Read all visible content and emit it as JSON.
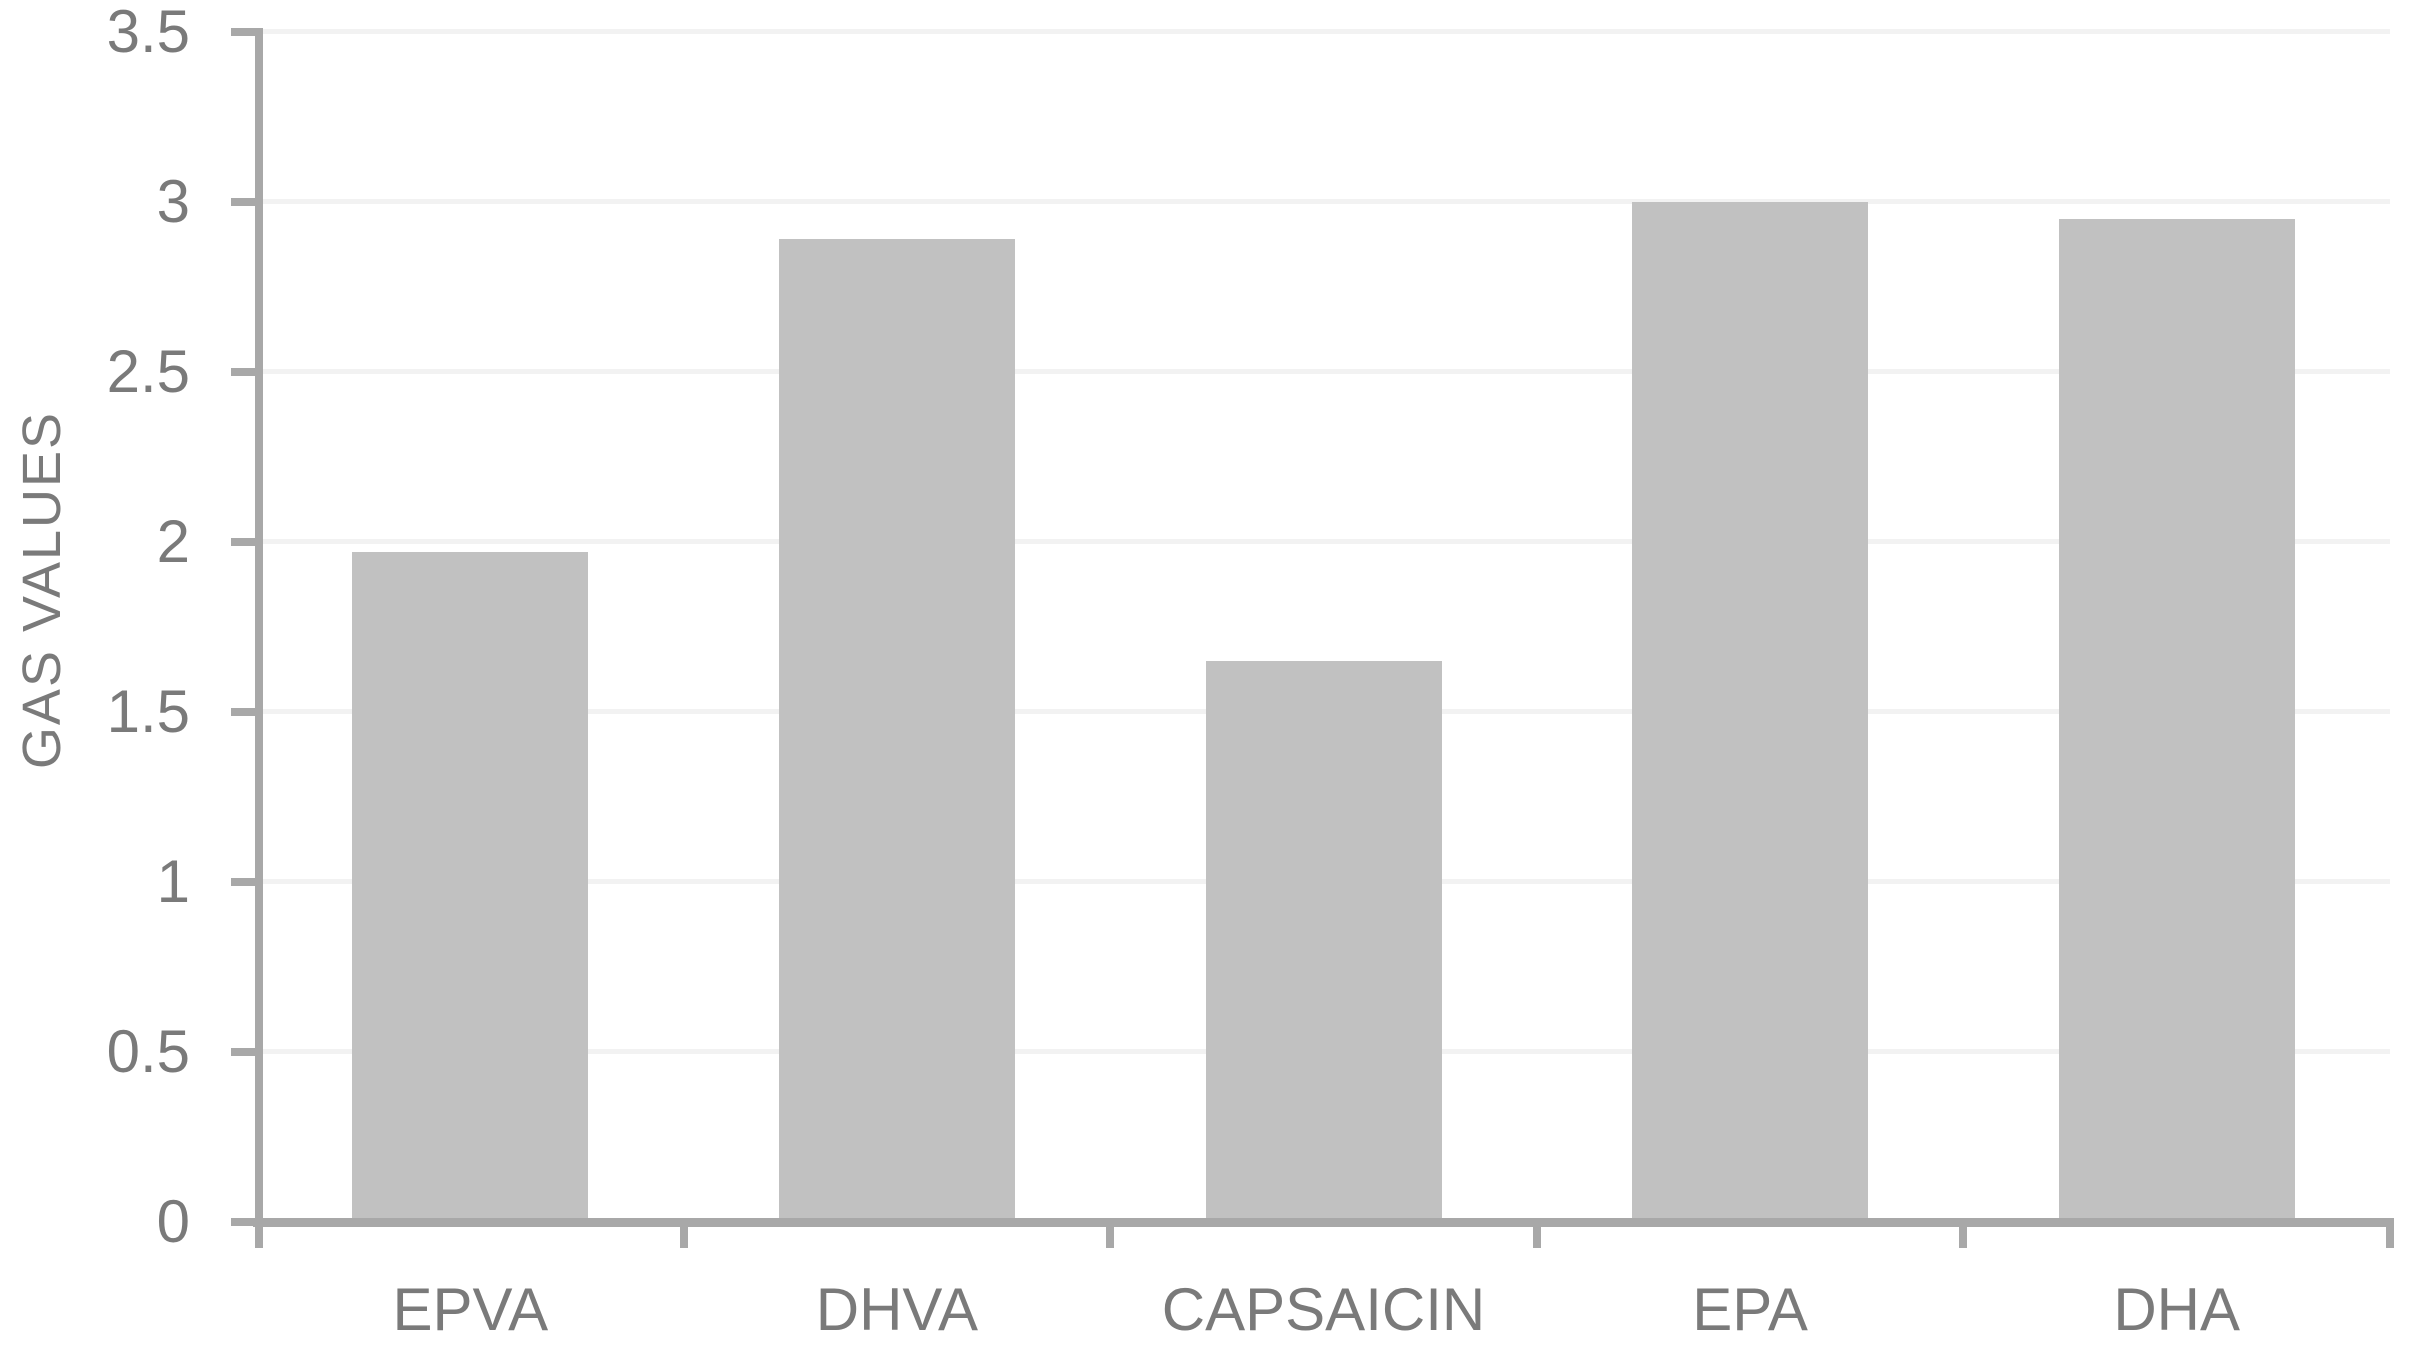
{
  "chart_data": {
    "type": "bar",
    "ylabel": "GAS VALUES",
    "categories": [
      "EPVA",
      "DHVA",
      "CAPSAICIN",
      "EPA",
      "DHA"
    ],
    "values": [
      1.97,
      2.89,
      1.65,
      3.0,
      2.95
    ],
    "series_name": "",
    "ylim": [
      0,
      3.5
    ],
    "ytick_interval": 0.5,
    "ytick_labels": [
      "0",
      "0.5",
      "1",
      "1.5",
      "2",
      "2.5",
      "3",
      "3.5"
    ],
    "grid": true,
    "legend": false,
    "bar_color": "#c1c1c1",
    "axis_color": "#a8a8a8",
    "gridline_color": "#f2f2f2",
    "label_color": "#7a7a7a"
  }
}
